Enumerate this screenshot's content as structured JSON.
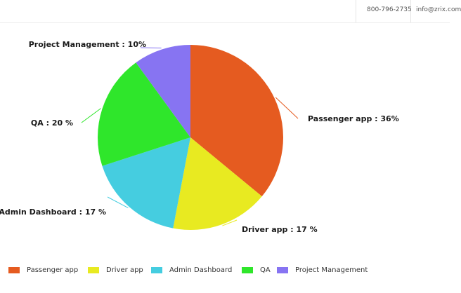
{
  "header": {
    "phone": "800-796-2735",
    "email": "info@zrix.com"
  },
  "chart_data": {
    "type": "pie",
    "categories": [
      "Passenger app",
      "Driver app",
      "Admin Dashboard",
      "QA",
      "Project Management"
    ],
    "values": [
      36,
      17,
      17,
      20,
      10
    ],
    "colors": [
      "#e55b20",
      "#e8ea21",
      "#45cde0",
      "#2fe62b",
      "#8774f2"
    ],
    "data_labels": [
      "Passenger app : 36%",
      "Driver app : 17 %",
      "Admin Dashboard : 17 %",
      "QA : 20 %",
      "Project Management : 10%"
    ],
    "start_angle": "12 o'clock, clockwise",
    "legend_position": "bottom"
  }
}
